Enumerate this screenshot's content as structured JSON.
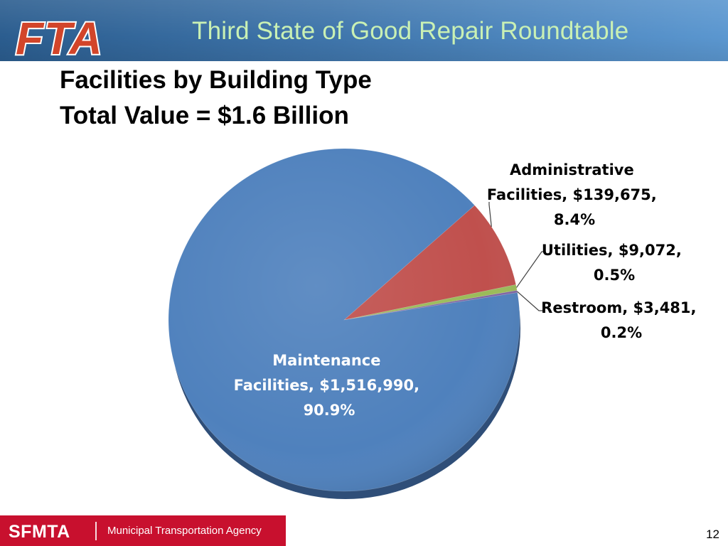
{
  "header": {
    "logo_text": "FTA",
    "title": "Third State of Good Repair Roundtable"
  },
  "slide": {
    "title_line1": "Facilities by Building Type",
    "title_line2": "Total Value = $1.6 Billion"
  },
  "colors": {
    "maintenance": "#4f81bd",
    "administrative": "#c0504d",
    "utilities": "#9bbb59",
    "restroom": "#8064a2",
    "footer_red": "#c8102e",
    "header_title": "#c9f0b4"
  },
  "chart_data": {
    "type": "pie",
    "title": "Facilities by Building Type",
    "categories": [
      "Maintenance Facilities",
      "Administrative Facilities",
      "Utilities",
      "Restroom"
    ],
    "values": [
      1516990,
      139675,
      9072,
      3481
    ],
    "percentages": [
      90.9,
      8.4,
      0.5,
      0.2
    ],
    "data_labels": [
      [
        "Maintenance",
        "Facilities, $1,516,990,",
        "90.9%"
      ],
      [
        "Administrative",
        "Facilities, $139,675,",
        "8.4%"
      ],
      [
        "Utilities, $9,072,",
        "0.5%"
      ],
      [
        "Restroom, $3,481,",
        "0.2%"
      ]
    ],
    "legend": "none"
  },
  "footer": {
    "logo_text": "SFMTA",
    "agency": "Municipal Transportation Agency"
  },
  "page_number": "12"
}
